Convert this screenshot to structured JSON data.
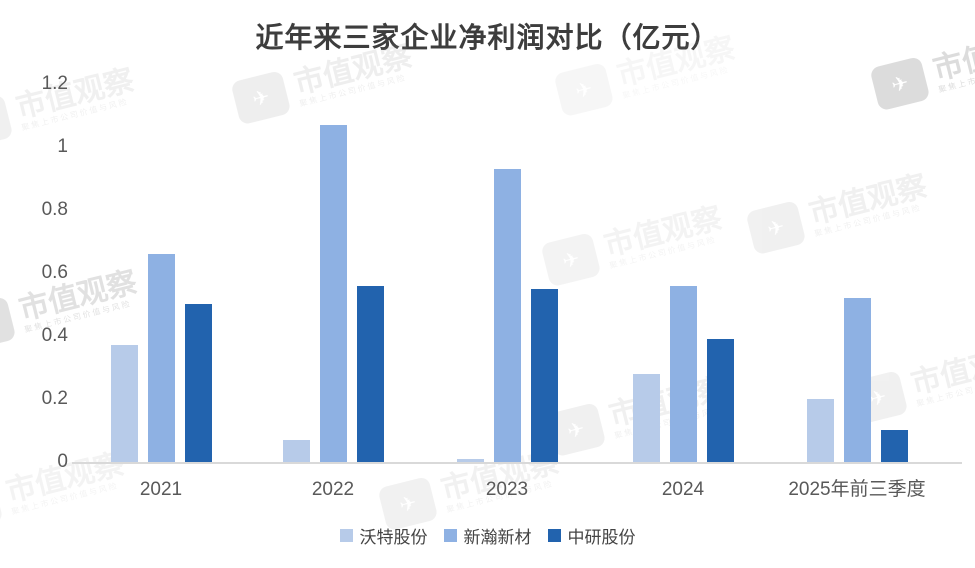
{
  "page": {
    "background": "#ffffff"
  },
  "chart_data": {
    "type": "bar",
    "title": "近年来三家企业净利润对比（亿元）",
    "xlabel": "",
    "ylabel": "",
    "categories": [
      "2021",
      "2022",
      "2023",
      "2024",
      "2025年前三季度"
    ],
    "series": [
      {
        "name": "沃特股份",
        "color": "#b7cbe9",
        "values": [
          0.37,
          0.07,
          0.01,
          0.28,
          0.2
        ]
      },
      {
        "name": "新瀚新材",
        "color": "#8eb1e3",
        "values": [
          0.66,
          1.07,
          0.93,
          0.56,
          0.52
        ]
      },
      {
        "name": "中研股份",
        "color": "#2263ae",
        "values": [
          0.5,
          0.56,
          0.55,
          0.39,
          0.1
        ]
      }
    ],
    "ylim": [
      0,
      1.2
    ],
    "yticks": [
      {
        "label": "0",
        "value": 0.0
      },
      {
        "label": "0.2",
        "value": 0.2
      },
      {
        "label": "0.4",
        "value": 0.4
      },
      {
        "label": "0.6",
        "value": 0.6
      },
      {
        "label": "0.8",
        "value": 0.8
      },
      {
        "label": "1",
        "value": 1.0
      },
      {
        "label": "1.2",
        "value": 1.2
      }
    ],
    "grid": false,
    "legend_position": "bottom",
    "colors": {
      "axis_text": "#595959",
      "axis_line": "#d9d9d9",
      "title_text": "#3d3d3d"
    }
  },
  "watermark": {
    "text": "市值观察",
    "subtext": "聚焦上市公司价值与风险",
    "logo_glyph": "✈"
  }
}
